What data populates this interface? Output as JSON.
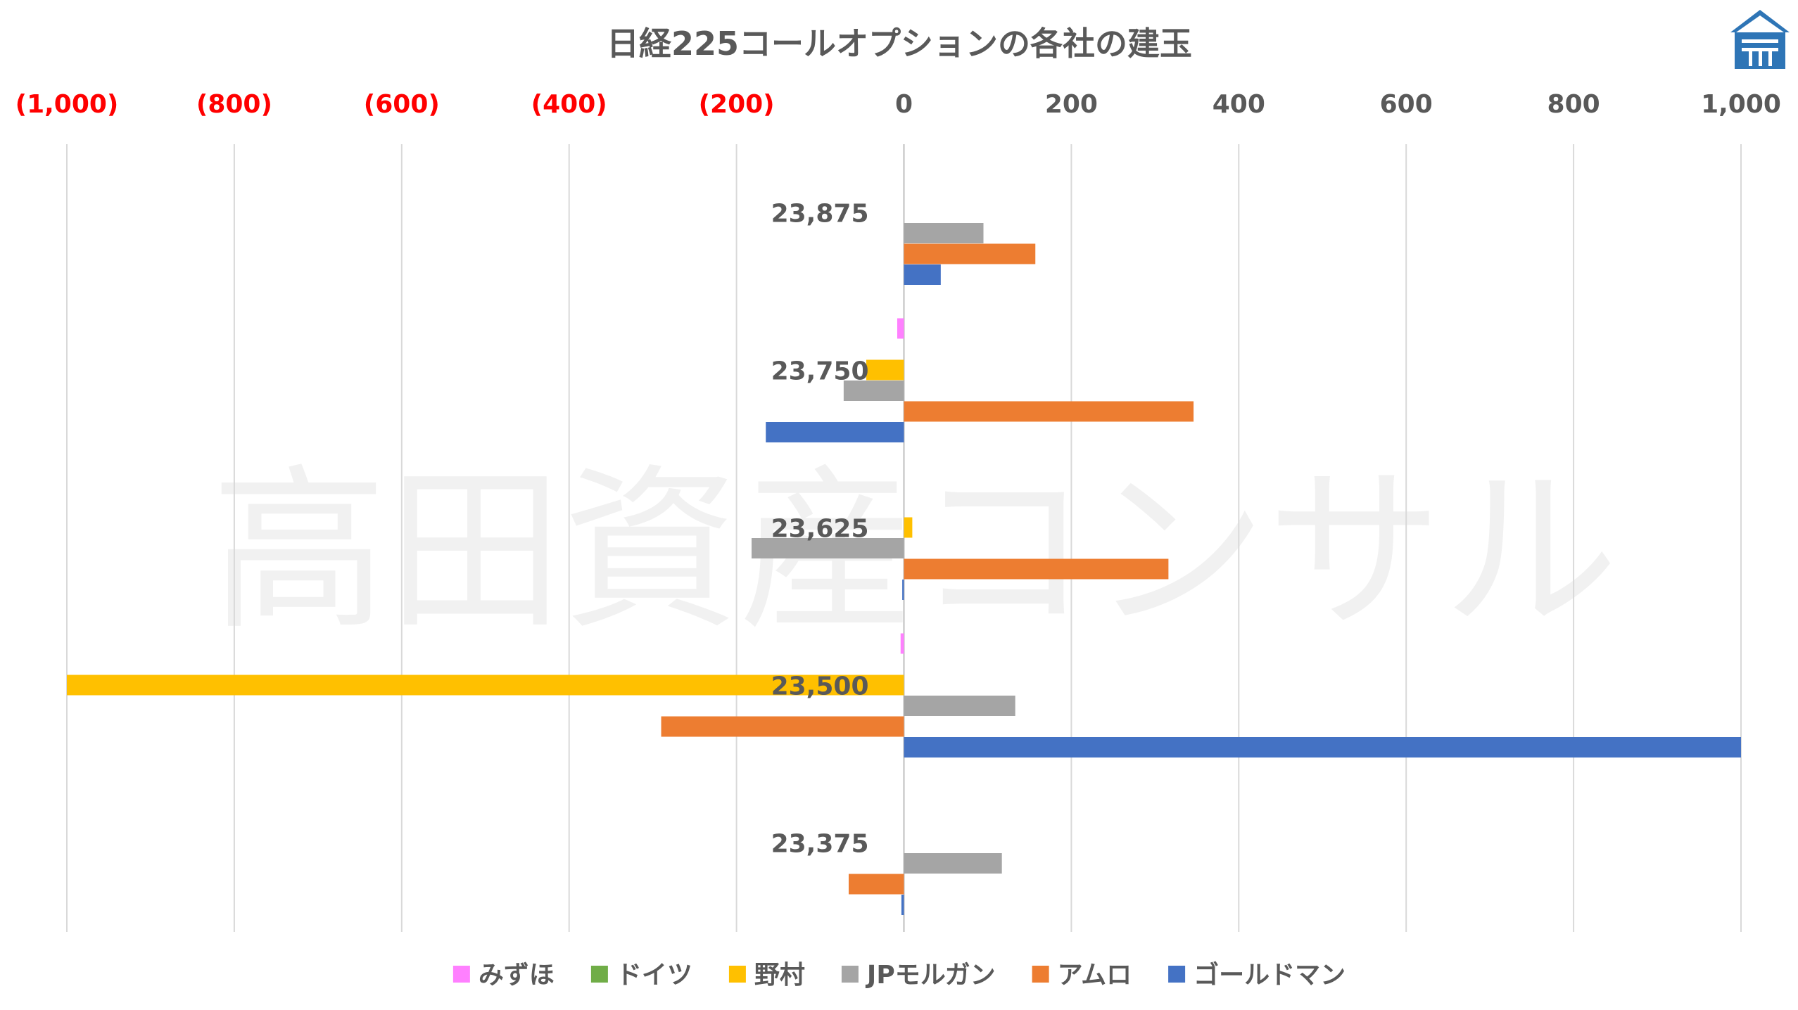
{
  "chart_data": {
    "type": "bar",
    "orientation": "horizontal",
    "title": "日経225コールオプションの各社の建玉",
    "x_ticks": [
      "(1,000)",
      "(800)",
      "(600)",
      "(400)",
      "(200)",
      "0",
      "200",
      "400",
      "600",
      "800",
      "1,000"
    ],
    "x_tick_values": [
      -1000,
      -800,
      -600,
      -400,
      -200,
      0,
      200,
      400,
      600,
      800,
      1000
    ],
    "xlim": [
      -1000,
      1000
    ],
    "grid": "vertical",
    "legend_position": "bottom",
    "categories": [
      "23,875",
      "23,750",
      "23,625",
      "23,500",
      "23,375"
    ],
    "series": [
      {
        "name": "みずほ",
        "color": "#ff80ff",
        "values": [
          0,
          -8,
          0,
          -4,
          0
        ]
      },
      {
        "name": "ドイツ",
        "color": "#70ad47",
        "values": [
          0,
          0,
          0,
          0,
          0
        ]
      },
      {
        "name": "野村",
        "color": "#ffc000",
        "values": [
          0,
          -45,
          10,
          -1000,
          0
        ]
      },
      {
        "name": "JPモルガン",
        "color": "#a5a5a5",
        "values": [
          95,
          -72,
          -182,
          133,
          117
        ]
      },
      {
        "name": "アムロ",
        "color": "#ed7d31",
        "values": [
          157,
          346,
          316,
          -290,
          -66
        ]
      },
      {
        "name": "ゴールドマン",
        "color": "#4472c4",
        "values": [
          44,
          -165,
          -2,
          1000,
          -3
        ]
      }
    ]
  },
  "watermark": {
    "text": "高田資産コンサル"
  },
  "logo": {
    "name": "takada-logo",
    "color": "#2e75b6"
  }
}
